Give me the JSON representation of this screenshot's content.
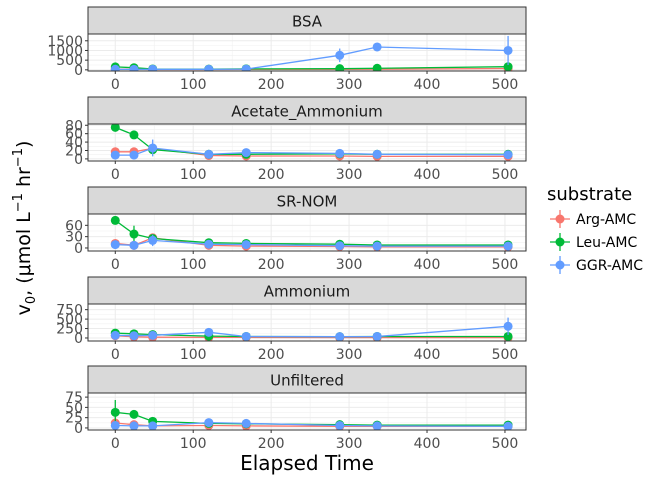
{
  "chart_data": {
    "type": "line",
    "layout": "faceted",
    "xlabel": "Elapsed Time",
    "ylabel": {
      "base": "v",
      "sub": "0",
      "text": ", (μmol L",
      "sup1": "−1",
      "mid": " hr",
      "sup2": "−1",
      "end": ")"
    },
    "xlim": [
      -35,
      527
    ],
    "x_ticks": [
      0,
      100,
      200,
      300,
      400,
      500
    ],
    "x_tick_labels": [
      "0",
      "100",
      "200",
      "300",
      "400",
      "500"
    ],
    "grid": true,
    "legend": {
      "title": "substrate",
      "position": "right",
      "entries": [
        {
          "label": "Arg-AMC",
          "color": "#F8766D"
        },
        {
          "label": "Leu-AMC",
          "color": "#00BA38"
        },
        {
          "label": "GGR-AMC",
          "color": "#619CFF"
        }
      ]
    },
    "panels": [
      {
        "strip": "BSA",
        "ylim": [
          -60,
          1850
        ],
        "y_ticks": [
          0,
          500,
          1000,
          1500
        ],
        "y_tick_labels": [
          "0",
          "500",
          "1000",
          "1500"
        ],
        "series": [
          {
            "name": "Arg-AMC",
            "x": [
              0,
              24,
              48,
              120,
              168,
              288,
              336,
              504
            ],
            "y": [
              40,
              35,
              20,
              15,
              30,
              25,
              35,
              70
            ],
            "err": [
              0,
              0,
              0,
              0,
              0,
              0,
              0,
              0
            ]
          },
          {
            "name": "Leu-AMC",
            "x": [
              0,
              24,
              48,
              120,
              168,
              288,
              336,
              504
            ],
            "y": [
              150,
              110,
              45,
              40,
              50,
              60,
              80,
              160
            ],
            "err": [
              60,
              50,
              20,
              10,
              10,
              15,
              20,
              40
            ]
          },
          {
            "name": "GGR-AMC",
            "x": [
              0,
              24,
              48,
              120,
              168,
              288,
              336,
              504
            ],
            "y": [
              30,
              25,
              30,
              30,
              40,
              750,
              1180,
              1000
            ],
            "err": [
              10,
              10,
              10,
              10,
              20,
              350,
              100,
              750
            ]
          }
        ]
      },
      {
        "strip": "Acetate_Ammonium",
        "ylim": [
          -5,
          83
        ],
        "y_ticks": [
          0,
          20,
          40,
          60,
          80
        ],
        "y_tick_labels": [
          "0",
          "20",
          "40",
          "60",
          "80"
        ],
        "series": [
          {
            "name": "Arg-AMC",
            "x": [
              0,
              24,
              48,
              120,
              168,
              288,
              336,
              504
            ],
            "y": [
              17,
              17,
              25,
              8,
              7,
              7,
              6,
              6
            ],
            "err": [
              3,
              3,
              5,
              2,
              2,
              2,
              2,
              2
            ]
          },
          {
            "name": "Leu-AMC",
            "x": [
              0,
              24,
              48,
              120,
              168,
              288,
              336,
              504
            ],
            "y": [
              75,
              57,
              22,
              11,
              11,
              12,
              11,
              11
            ],
            "err": [
              3,
              4,
              8,
              3,
              3,
              3,
              3,
              3
            ]
          },
          {
            "name": "GGR-AMC",
            "x": [
              0,
              24,
              48,
              120,
              168,
              288,
              336,
              504
            ],
            "y": [
              9,
              9,
              26,
              11,
              15,
              13,
              11,
              10
            ],
            "err": [
              2,
              2,
              20,
              4,
              5,
              4,
              3,
              3
            ]
          }
        ]
      },
      {
        "strip": "SR-NOM",
        "ylim": [
          -8,
          90
        ],
        "y_ticks": [
          0,
          30,
          60
        ],
        "y_tick_labels": [
          "0",
          "30",
          "60"
        ],
        "series": [
          {
            "name": "Arg-AMC",
            "x": [
              0,
              24,
              48,
              120,
              168,
              288,
              336,
              504
            ],
            "y": [
              12,
              7,
              27,
              7,
              5,
              4,
              3,
              3
            ],
            "err": [
              3,
              8,
              8,
              2,
              2,
              2,
              2,
              2
            ]
          },
          {
            "name": "Leu-AMC",
            "x": [
              0,
              24,
              48,
              120,
              168,
              288,
              336,
              504
            ],
            "y": [
              73,
              37,
              25,
              14,
              12,
              10,
              8,
              8
            ],
            "err": [
              10,
              22,
              8,
              4,
              4,
              3,
              3,
              3
            ]
          },
          {
            "name": "GGR-AMC",
            "x": [
              0,
              24,
              48,
              120,
              168,
              288,
              336,
              504
            ],
            "y": [
              9,
              7,
              20,
              10,
              9,
              6,
              5,
              5
            ],
            "err": [
              2,
              3,
              15,
              3,
              3,
              2,
              2,
              2
            ]
          }
        ]
      },
      {
        "strip": "Ammonium",
        "ylim": [
          -80,
          900
        ],
        "y_ticks": [
          0,
          250,
          500,
          750
        ],
        "y_tick_labels": [
          "0",
          "250",
          "500",
          "750"
        ],
        "series": [
          {
            "name": "Arg-AMC",
            "x": [
              0,
              24,
              48,
              120,
              168,
              288,
              336,
              504
            ],
            "y": [
              60,
              30,
              20,
              15,
              15,
              10,
              10,
              10
            ],
            "err": [
              10,
              10,
              5,
              5,
              5,
              5,
              5,
              5
            ]
          },
          {
            "name": "Leu-AMC",
            "x": [
              0,
              24,
              48,
              120,
              168,
              288,
              336,
              504
            ],
            "y": [
              130,
              110,
              90,
              50,
              40,
              35,
              40,
              40
            ],
            "err": [
              40,
              40,
              30,
              15,
              10,
              10,
              10,
              10
            ]
          },
          {
            "name": "GGR-AMC",
            "x": [
              0,
              24,
              48,
              120,
              168,
              288,
              336,
              504
            ],
            "y": [
              70,
              60,
              70,
              150,
              40,
              35,
              40,
              310
            ],
            "err": [
              20,
              20,
              20,
              80,
              15,
              10,
              10,
              230
            ]
          }
        ]
      },
      {
        "strip": "Unfiltered",
        "ylim": [
          -5,
          85
        ],
        "y_ticks": [
          0,
          25,
          50,
          75
        ],
        "y_tick_labels": [
          "0",
          "25",
          "50",
          "75"
        ],
        "series": [
          {
            "name": "Arg-AMC",
            "x": [
              0,
              24,
              48,
              120,
              168,
              288,
              336,
              504
            ],
            "y": [
              12,
              8,
              5,
              6,
              5,
              4,
              4,
              4
            ],
            "err": [
              3,
              2,
              2,
              2,
              2,
              1,
              1,
              1
            ]
          },
          {
            "name": "Leu-AMC",
            "x": [
              0,
              24,
              48,
              120,
              168,
              288,
              336,
              504
            ],
            "y": [
              38,
              33,
              16,
              11,
              10,
              8,
              7,
              7
            ],
            "err": [
              30,
              6,
              4,
              3,
              3,
              2,
              2,
              2
            ]
          },
          {
            "name": "GGR-AMC",
            "x": [
              0,
              24,
              48,
              120,
              168,
              288,
              336,
              504
            ],
            "y": [
              6,
              5,
              5,
              13,
              11,
              6,
              5,
              4
            ],
            "err": [
              2,
              2,
              2,
              4,
              3,
              2,
              2,
              2
            ]
          }
        ]
      }
    ]
  }
}
